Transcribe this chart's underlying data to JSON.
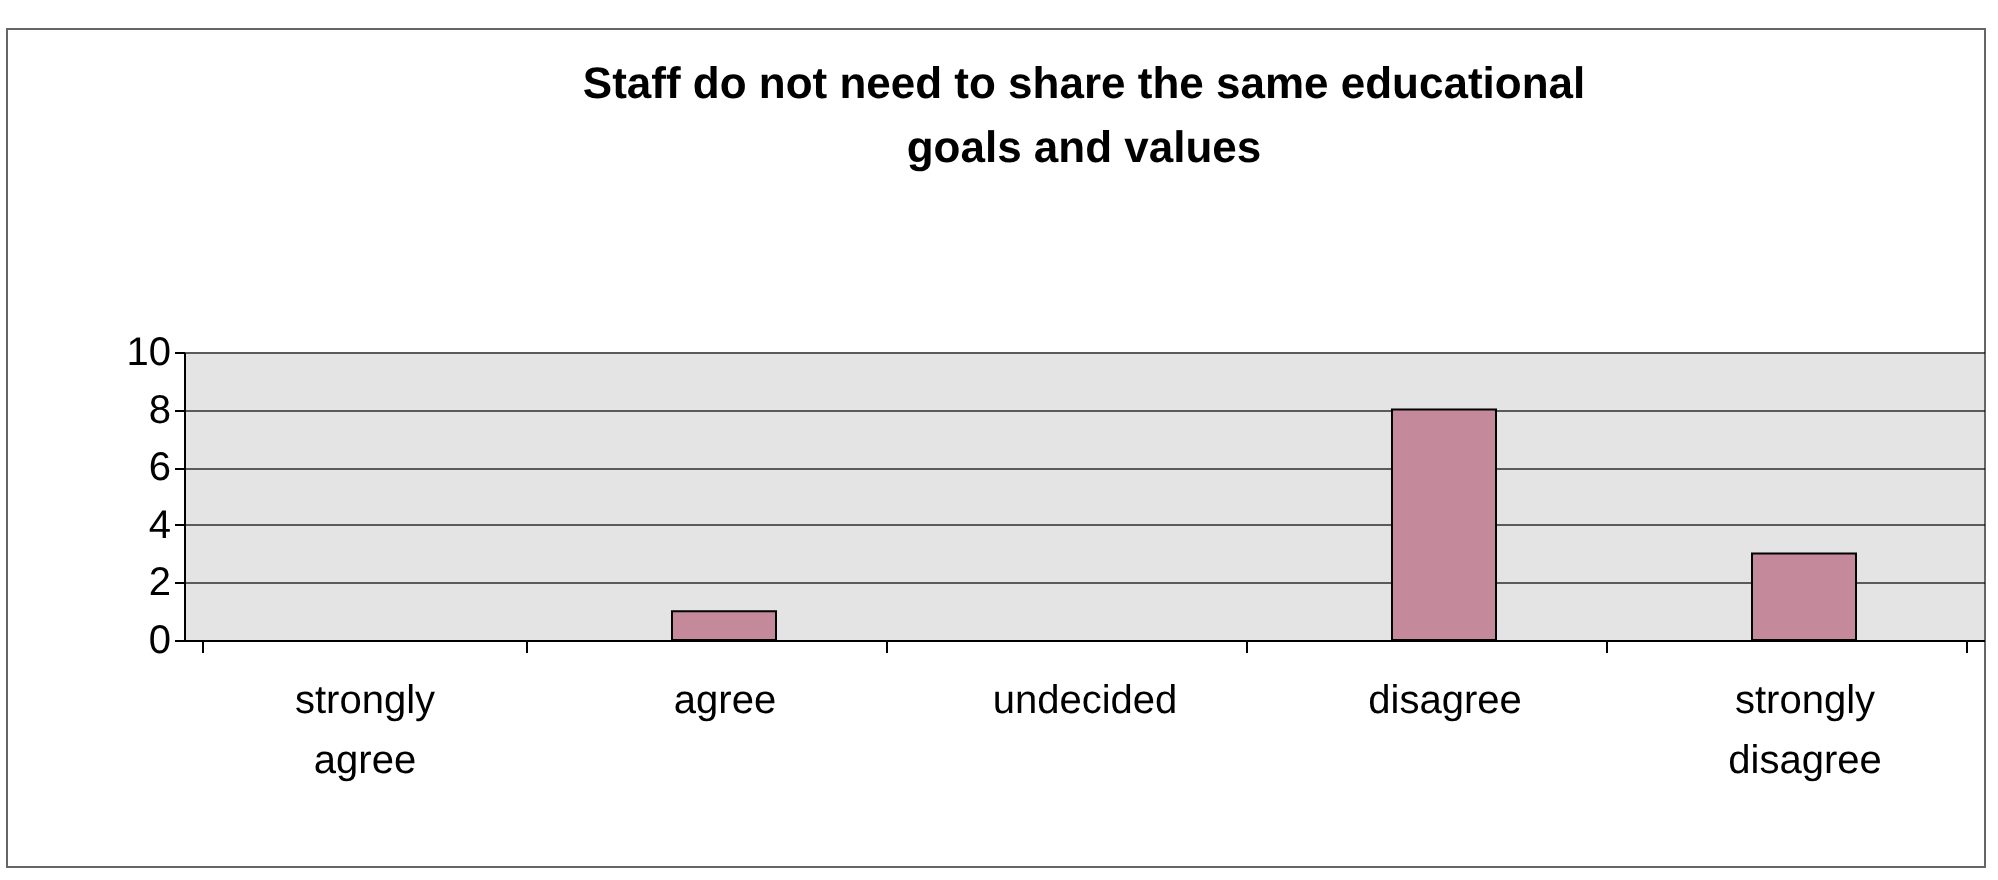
{
  "chart_data": {
    "type": "bar",
    "title": "Staff do not need to share the same educational goals and values",
    "categories": [
      "strongly agree",
      "agree",
      "undecided",
      "disagree",
      "strongly disagree"
    ],
    "values": [
      0,
      1,
      0,
      8,
      3
    ],
    "color": "#c48a9c",
    "ylim": [
      0,
      10
    ],
    "yticks": [
      0,
      2,
      4,
      6,
      8,
      10
    ],
    "grid": "y"
  }
}
